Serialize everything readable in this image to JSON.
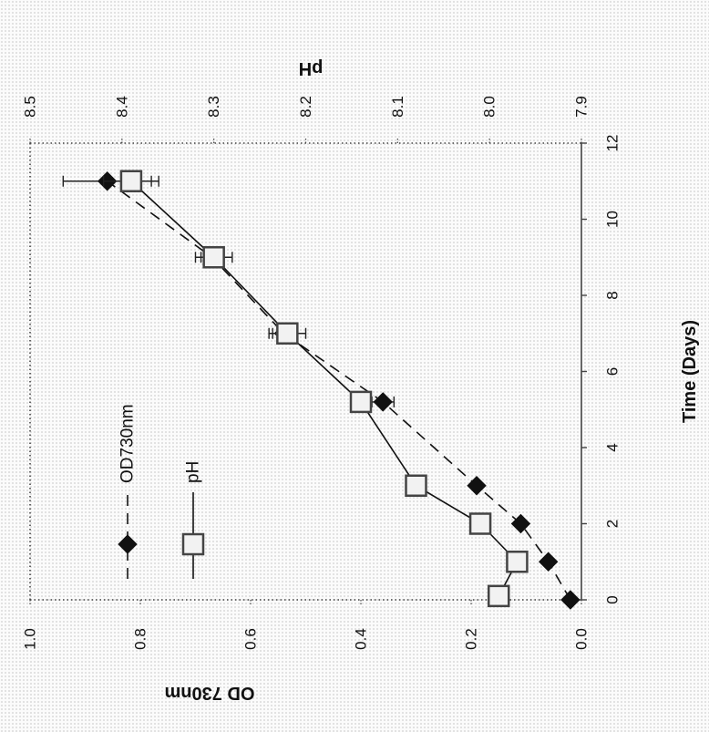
{
  "chart_data": {
    "type": "line",
    "orientation": "rotated-90-ccw",
    "xlabel": "Time (Days)",
    "ylabel": "OD 730nm",
    "y2label": "pH",
    "xlim": [
      0,
      12
    ],
    "ylim": [
      0,
      1.0
    ],
    "y2lim": [
      7.9,
      8.5
    ],
    "xticks": [
      "0",
      "2",
      "4",
      "6",
      "8",
      "10",
      "12"
    ],
    "yticks": [
      "0.0",
      "0.2",
      "0.4",
      "0.6",
      "0.8",
      "1.0"
    ],
    "y2ticks": [
      "7.9",
      "8.0",
      "8.1",
      "8.2",
      "8.3",
      "8.4",
      "8.5"
    ],
    "grid": false,
    "legend_position": "top-left",
    "series": [
      {
        "name": "OD730nm",
        "axis": "left",
        "marker": "filled-diamond",
        "line": "dashed",
        "x": [
          0,
          1,
          2,
          3,
          5.2,
          7,
          9,
          11
        ],
        "y": [
          0.02,
          0.06,
          0.11,
          0.19,
          0.36,
          0.54,
          0.67,
          0.86
        ],
        "error": [
          0,
          0,
          0,
          0,
          0.02,
          0.02,
          0.02,
          0.08
        ]
      },
      {
        "name": "pH",
        "axis": "right",
        "marker": "open-square",
        "line": "solid",
        "x": [
          0.1,
          1,
          2,
          3,
          5.2,
          7,
          9,
          11
        ],
        "y": [
          7.99,
          7.97,
          8.01,
          8.08,
          8.14,
          8.22,
          8.3,
          8.39
        ],
        "error": [
          0,
          0,
          0,
          0,
          0,
          0.02,
          0.02,
          0.03
        ]
      }
    ]
  }
}
